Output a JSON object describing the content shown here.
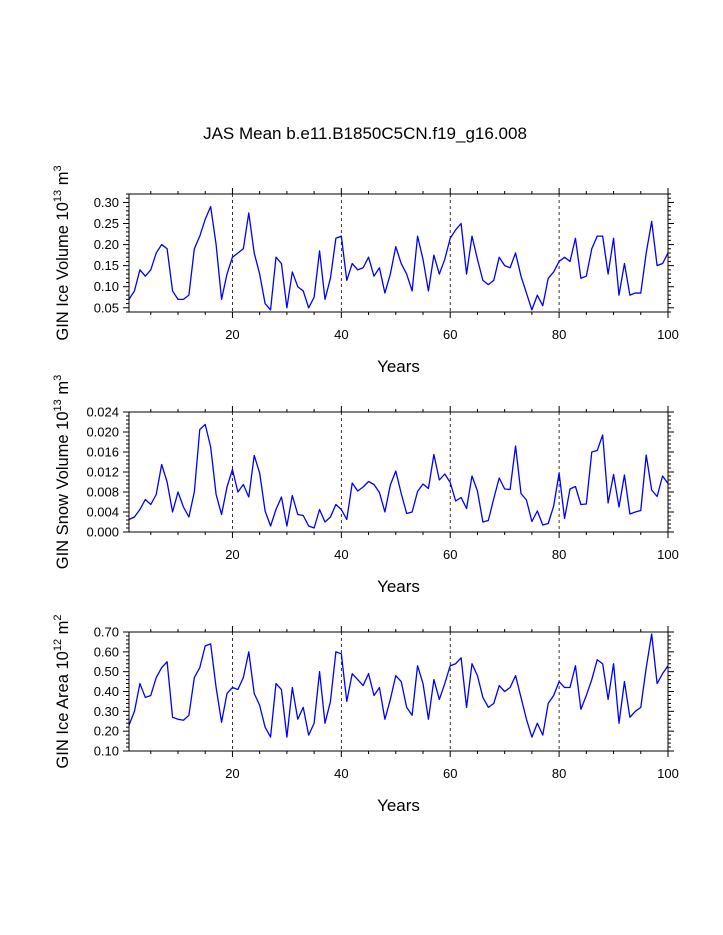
{
  "title": "JAS Mean b.e11.B1850C5CN.f19_g16.008",
  "chart_data": [
    {
      "type": "line",
      "ylabel": {
        "main": "GIN Ice Volume 10",
        "sup1": "13",
        "unit": " m",
        "sup2": "3"
      },
      "xlabel": "Years",
      "xlim": [
        1,
        100
      ],
      "ylim": [
        0.04,
        0.32
      ],
      "xticks": [
        "20",
        "40",
        "60",
        "80",
        "100"
      ],
      "yticks": [
        "0.05",
        "0.10",
        "0.15",
        "0.20",
        "0.25",
        "0.30"
      ],
      "x": [
        1,
        2,
        3,
        4,
        5,
        6,
        7,
        8,
        9,
        10,
        11,
        12,
        13,
        14,
        15,
        16,
        17,
        18,
        19,
        20,
        21,
        22,
        23,
        24,
        25,
        26,
        27,
        28,
        29,
        30,
        31,
        32,
        33,
        34,
        35,
        36,
        37,
        38,
        39,
        40,
        41,
        42,
        43,
        44,
        45,
        46,
        47,
        48,
        49,
        50,
        51,
        52,
        53,
        54,
        55,
        56,
        57,
        58,
        59,
        60,
        61,
        62,
        63,
        64,
        65,
        66,
        67,
        68,
        69,
        70,
        71,
        72,
        73,
        74,
        75,
        76,
        77,
        78,
        79,
        80,
        81,
        82,
        83,
        84,
        85,
        86,
        87,
        88,
        89,
        90,
        91,
        92,
        93,
        94,
        95,
        96,
        97,
        98,
        99,
        100
      ],
      "values": [
        0.07,
        0.09,
        0.14,
        0.125,
        0.14,
        0.18,
        0.2,
        0.19,
        0.09,
        0.07,
        0.07,
        0.08,
        0.19,
        0.22,
        0.26,
        0.29,
        0.2,
        0.07,
        0.13,
        0.17,
        0.18,
        0.19,
        0.275,
        0.18,
        0.13,
        0.06,
        0.045,
        0.17,
        0.155,
        0.05,
        0.135,
        0.1,
        0.09,
        0.05,
        0.075,
        0.185,
        0.07,
        0.12,
        0.215,
        0.22,
        0.115,
        0.155,
        0.14,
        0.145,
        0.17,
        0.125,
        0.145,
        0.085,
        0.13,
        0.195,
        0.155,
        0.13,
        0.09,
        0.22,
        0.165,
        0.09,
        0.175,
        0.13,
        0.165,
        0.215,
        0.235,
        0.25,
        0.13,
        0.22,
        0.165,
        0.115,
        0.105,
        0.115,
        0.17,
        0.15,
        0.145,
        0.18,
        0.125,
        0.085,
        0.045,
        0.08,
        0.055,
        0.12,
        0.135,
        0.16,
        0.17,
        0.16,
        0.215,
        0.12,
        0.125,
        0.19,
        0.22,
        0.22,
        0.13,
        0.215,
        0.08,
        0.155,
        0.08,
        0.085,
        0.085,
        0.18,
        0.255,
        0.15,
        0.155,
        0.18
      ]
    },
    {
      "type": "line",
      "ylabel": {
        "main": "GIN Snow Volume 10",
        "sup1": "13",
        "unit": " m",
        "sup2": "3"
      },
      "xlabel": "Years",
      "xlim": [
        1,
        100
      ],
      "ylim": [
        0,
        0.024
      ],
      "xticks": [
        "20",
        "40",
        "60",
        "80",
        "100"
      ],
      "yticks": [
        "0.000",
        "0.004",
        "0.008",
        "0.012",
        "0.016",
        "0.020",
        "0.024"
      ],
      "x": [
        1,
        2,
        3,
        4,
        5,
        6,
        7,
        8,
        9,
        10,
        11,
        12,
        13,
        14,
        15,
        16,
        17,
        18,
        19,
        20,
        21,
        22,
        23,
        24,
        25,
        26,
        27,
        28,
        29,
        30,
        31,
        32,
        33,
        34,
        35,
        36,
        37,
        38,
        39,
        40,
        41,
        42,
        43,
        44,
        45,
        46,
        47,
        48,
        49,
        50,
        51,
        52,
        53,
        54,
        55,
        56,
        57,
        58,
        59,
        60,
        61,
        62,
        63,
        64,
        65,
        66,
        67,
        68,
        69,
        70,
        71,
        72,
        73,
        74,
        75,
        76,
        77,
        78,
        79,
        80,
        81,
        82,
        83,
        84,
        85,
        86,
        87,
        88,
        89,
        90,
        91,
        92,
        93,
        94,
        95,
        96,
        97,
        98,
        99,
        100
      ],
      "values": [
        0.0025,
        0.003,
        0.0045,
        0.0065,
        0.0055,
        0.0075,
        0.0135,
        0.01,
        0.004,
        0.008,
        0.005,
        0.003,
        0.008,
        0.0205,
        0.0215,
        0.017,
        0.0075,
        0.0035,
        0.009,
        0.0125,
        0.008,
        0.0095,
        0.007,
        0.0153,
        0.0118,
        0.0042,
        0.0012,
        0.0045,
        0.007,
        0.0012,
        0.0073,
        0.0035,
        0.0033,
        0.0012,
        0.0008,
        0.0045,
        0.002,
        0.003,
        0.0055,
        0.0045,
        0.0025,
        0.0098,
        0.0082,
        0.009,
        0.0101,
        0.0095,
        0.0079,
        0.004,
        0.0094,
        0.0122,
        0.0077,
        0.0037,
        0.004,
        0.0081,
        0.0096,
        0.0087,
        0.0155,
        0.0104,
        0.0116,
        0.0099,
        0.0062,
        0.0069,
        0.0047,
        0.0112,
        0.0082,
        0.002,
        0.0023,
        0.0067,
        0.0108,
        0.0086,
        0.0085,
        0.0172,
        0.0077,
        0.0064,
        0.0021,
        0.0042,
        0.0014,
        0.0017,
        0.0052,
        0.0118,
        0.0027,
        0.0086,
        0.0091,
        0.0055,
        0.0056,
        0.016,
        0.0163,
        0.0194,
        0.0058,
        0.0115,
        0.005,
        0.0114,
        0.0036,
        0.004,
        0.0043,
        0.0154,
        0.0084,
        0.0071,
        0.0112,
        0.0097
      ]
    },
    {
      "type": "line",
      "ylabel": {
        "main": "GIN Ice Area 10",
        "sup1": "12",
        "unit": " m",
        "sup2": "2"
      },
      "xlabel": "Years",
      "xlim": [
        1,
        100
      ],
      "ylim": [
        0.1,
        0.7
      ],
      "xticks": [
        "20",
        "40",
        "60",
        "80",
        "100"
      ],
      "yticks": [
        "0.10",
        "0.20",
        "0.30",
        "0.40",
        "0.50",
        "0.60",
        "0.70"
      ],
      "x": [
        1,
        2,
        3,
        4,
        5,
        6,
        7,
        8,
        9,
        10,
        11,
        12,
        13,
        14,
        15,
        16,
        17,
        18,
        19,
        20,
        21,
        22,
        23,
        24,
        25,
        26,
        27,
        28,
        29,
        30,
        31,
        32,
        33,
        34,
        35,
        36,
        37,
        38,
        39,
        40,
        41,
        42,
        43,
        44,
        45,
        46,
        47,
        48,
        49,
        50,
        51,
        52,
        53,
        54,
        55,
        56,
        57,
        58,
        59,
        60,
        61,
        62,
        63,
        64,
        65,
        66,
        67,
        68,
        69,
        70,
        71,
        72,
        73,
        74,
        75,
        76,
        77,
        78,
        79,
        80,
        81,
        82,
        83,
        84,
        85,
        86,
        87,
        88,
        89,
        90,
        91,
        92,
        93,
        94,
        95,
        96,
        97,
        98,
        99,
        100
      ],
      "values": [
        0.23,
        0.3,
        0.44,
        0.37,
        0.38,
        0.47,
        0.52,
        0.55,
        0.27,
        0.26,
        0.255,
        0.28,
        0.47,
        0.52,
        0.63,
        0.64,
        0.42,
        0.245,
        0.39,
        0.42,
        0.41,
        0.47,
        0.6,
        0.39,
        0.33,
        0.22,
        0.17,
        0.44,
        0.41,
        0.17,
        0.42,
        0.26,
        0.32,
        0.18,
        0.24,
        0.5,
        0.24,
        0.35,
        0.6,
        0.59,
        0.35,
        0.49,
        0.46,
        0.43,
        0.49,
        0.38,
        0.42,
        0.26,
        0.36,
        0.48,
        0.45,
        0.32,
        0.28,
        0.53,
        0.44,
        0.26,
        0.46,
        0.36,
        0.44,
        0.53,
        0.54,
        0.57,
        0.32,
        0.54,
        0.48,
        0.37,
        0.32,
        0.34,
        0.43,
        0.4,
        0.42,
        0.48,
        0.37,
        0.26,
        0.17,
        0.24,
        0.18,
        0.34,
        0.38,
        0.45,
        0.42,
        0.42,
        0.53,
        0.31,
        0.38,
        0.46,
        0.56,
        0.54,
        0.36,
        0.54,
        0.24,
        0.45,
        0.27,
        0.3,
        0.32,
        0.52,
        0.69,
        0.44,
        0.49,
        0.53
      ]
    }
  ]
}
